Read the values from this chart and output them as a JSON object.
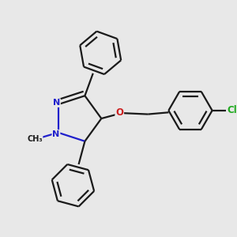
{
  "background_color": "#e8e8e8",
  "bond_color": "#1a1a1a",
  "bond_width": 1.6,
  "n_color": "#2020cc",
  "o_color": "#cc2020",
  "cl_color": "#20aa20",
  "figsize": [
    3.0,
    3.0
  ],
  "dpi": 100,
  "xlim": [
    -0.05,
    1.05
  ],
  "ylim": [
    0.02,
    1.02
  ]
}
